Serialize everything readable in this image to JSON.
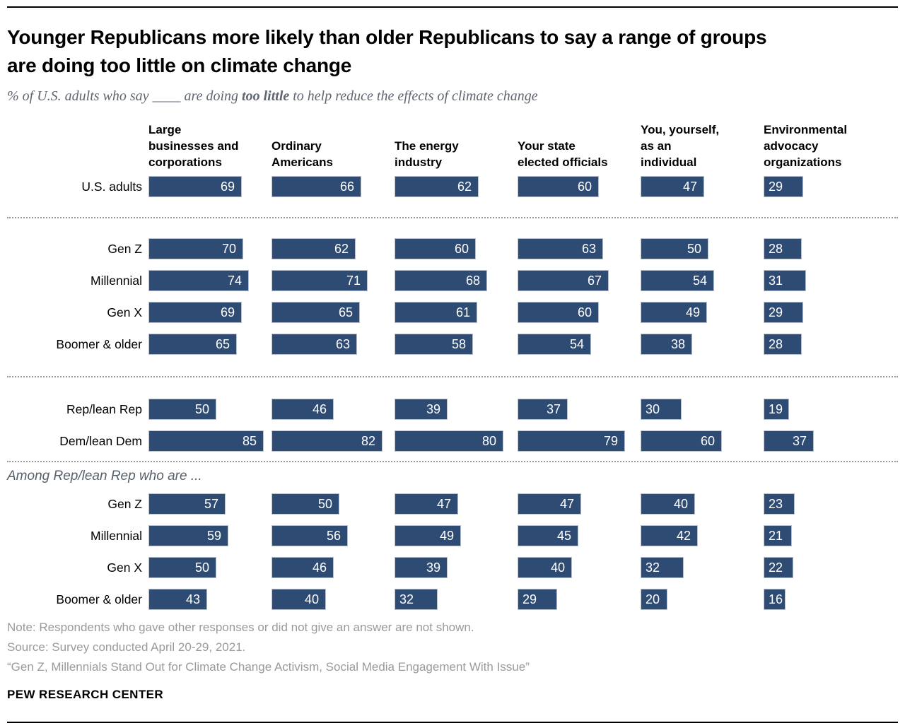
{
  "page": {
    "title": "Younger Republicans more likely than older Republicans to say a range of groups\nare doing too little on climate change",
    "subtitle": {
      "prefix": "% of U.S. adults who say ____ are doing ",
      "emphasis": "too little",
      "suffix": " to help reduce the effects of climate change"
    },
    "note": "Note: Respondents who gave other responses or did not give an answer are not shown.",
    "source": "Source: Survey conducted April 20-29, 2021.",
    "report_title": "“Gen Z, Millennials Stand Out for Climate Change Activism, Social Media Engagement With Issue”",
    "brand": "PEW RESEARCH CENTER"
  },
  "chart_data": {
    "type": "bar",
    "orientation": "horizontal",
    "unit": "percent",
    "xlim": [
      0,
      100
    ],
    "bar_color": "#2e4b74",
    "value_label_color": "#ffffff",
    "grid": false,
    "legend": false,
    "title": "Younger Republicans more likely than older Republicans to say a range of groups are doing too little on climate change",
    "xlabel": "",
    "ylabel": "",
    "columns": [
      "Large\nbusinesses and\ncorporations",
      "Ordinary\nAmericans",
      "The energy\nindustry",
      "Your state\nelected officials",
      "You, yourself,\nas an\nindividual",
      "Environmental\nadvocacy\norganizations"
    ],
    "sections": [
      {
        "name": "us-adults",
        "rows": [
          {
            "label": "U.S. adults",
            "values": [
              69,
              66,
              62,
              60,
              47,
              29
            ]
          }
        ]
      },
      {
        "name": "generations",
        "rows": [
          {
            "label": "Gen Z",
            "values": [
              70,
              62,
              60,
              63,
              50,
              28
            ]
          },
          {
            "label": "Millennial",
            "values": [
              74,
              71,
              68,
              67,
              54,
              31
            ]
          },
          {
            "label": "Gen X",
            "values": [
              69,
              65,
              61,
              60,
              49,
              29
            ]
          },
          {
            "label": "Boomer & older",
            "values": [
              65,
              63,
              58,
              54,
              38,
              28
            ]
          }
        ]
      },
      {
        "name": "party",
        "rows": [
          {
            "label": "Rep/lean Rep",
            "values": [
              50,
              46,
              39,
              37,
              30,
              19
            ]
          },
          {
            "label": "Dem/lean Dem",
            "values": [
              85,
              82,
              80,
              79,
              60,
              37
            ]
          }
        ]
      },
      {
        "name": "rep-generations",
        "intro": "Among Rep/lean Rep who are ...",
        "rows": [
          {
            "label": "Gen Z",
            "values": [
              57,
              50,
              47,
              47,
              40,
              23
            ]
          },
          {
            "label": "Millennial",
            "values": [
              59,
              56,
              49,
              45,
              42,
              21
            ]
          },
          {
            "label": "Gen X",
            "values": [
              50,
              46,
              39,
              40,
              32,
              22
            ]
          },
          {
            "label": "Boomer & older",
            "values": [
              43,
              40,
              32,
              29,
              20,
              16
            ]
          }
        ]
      }
    ]
  }
}
